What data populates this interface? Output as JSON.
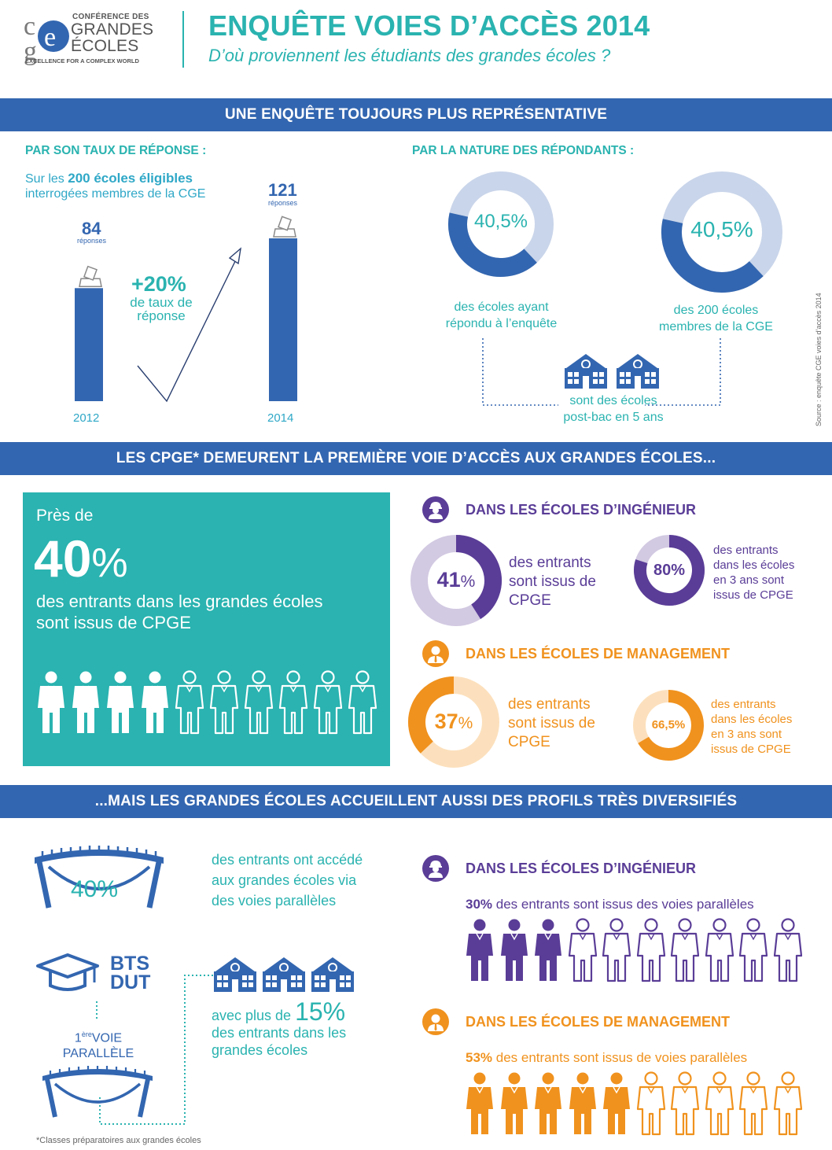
{
  "header": {
    "logo_line1": "CONFÉRENCE DES",
    "logo_line2": "GRANDES",
    "logo_line3": "ÉCOLES",
    "logo_tagline": "EXCELLENCE FOR A COMPLEX WORLD",
    "title": "ENQUÊTE VOIES D’ACCÈS 2014",
    "subtitle": "D’où proviennent les étudiants des grandes écoles ?"
  },
  "section1": {
    "banner": "UNE ENQUÊTE TOUJOURS PLUS REPRÉSENTATIVE",
    "left_heading": "PAR SON TAUX DE RÉPONSE :",
    "left_intro_pre": "Sur les ",
    "left_intro_bold": "200 écoles éligibles",
    "left_intro_line2": "interrogées membres de la CGE",
    "bars": [
      {
        "year": "2012",
        "value": 84,
        "value_label": "84",
        "unit": "réponses"
      },
      {
        "year": "2014",
        "value": 121,
        "value_label": "121",
        "unit": "réponses"
      }
    ],
    "growth_value": "+20%",
    "growth_text_line1": "de taux de",
    "growth_text_line2": "réponse",
    "right_heading": "PAR LA NATURE DES RÉPONDANTS :",
    "donuts": [
      {
        "value": 40.5,
        "label": "40,5%",
        "text_line1": "des écoles ayant",
        "text_line2": "répondu à l’enquête"
      },
      {
        "value": 40.5,
        "label": "40,5%",
        "text_line1": "des 200 écoles",
        "text_line2": "membres de la CGE"
      }
    ],
    "bracket_line1": "sont des écoles",
    "bracket_line2": "post-bac en 5 ans",
    "source": "Source : enquête CGE voies d’accès 2014"
  },
  "section2": {
    "banner": "LES CPGE* DEMEURENT LA PREMIÈRE VOIE D’ACCÈS AUX GRANDES ÉCOLES...",
    "teal_box": {
      "pre": "Près de",
      "big_number": "40",
      "big_pct": "%",
      "line1": "des entrants dans les grandes écoles",
      "line2": "sont issus de CPGE",
      "filled_people": 4,
      "total_people": 10
    },
    "engineering": {
      "heading": "DANS LES ÉCOLES D’INGÉNIEUR",
      "main_value": 41,
      "main_label_num": "41",
      "main_label_pct": "%",
      "main_text_line1": "des entrants",
      "main_text_line2": "sont issus de",
      "main_text_line3": "CPGE",
      "secondary_value": 80,
      "secondary_label": "80%",
      "secondary_text_line1": "des entrants",
      "secondary_text_line2": "dans les écoles",
      "secondary_text_line3": "en 3 ans sont",
      "secondary_text_line4": "issus de CPGE"
    },
    "management": {
      "heading": "DANS LES ÉCOLES DE MANAGEMENT",
      "main_value": 37,
      "main_label_num": "37",
      "main_label_pct": "%",
      "main_text_line1": "des entrants",
      "main_text_line2": "sont issus de",
      "main_text_line3": "CPGE",
      "secondary_value": 66.5,
      "secondary_label": "66,5%",
      "secondary_text_line1": "des entrants",
      "secondary_text_line2": "dans les écoles",
      "secondary_text_line3": "en 3 ans sont",
      "secondary_text_line4": "issus de CPGE"
    }
  },
  "section3": {
    "banner": "...MAIS LES GRANDES ÉCOLES ACCUEILLENT AUSSI DES PROFILS TRÈS DIVERSIFIÉS",
    "bridge_value": "40%",
    "bridge_text_line1": "des entrants ont accédé",
    "bridge_text_line2": "aux grandes écoles via",
    "bridge_text_line3": "des voies parallèles",
    "bts": "BTS",
    "dut": "DUT",
    "first_path_num": "1",
    "first_path_sup": "ère",
    "first_path_word": "VOIE",
    "first_path_line2": "PARALLÈLE",
    "bts_text_pre": "avec plus de ",
    "bts_value": "15%",
    "bts_text_line2": "des entrants dans les",
    "bts_text_line3": "grandes écoles",
    "engineering": {
      "heading": "DANS LES ÉCOLES D’INGÉNIEUR",
      "bold": "30%",
      "text": " des entrants sont issus des voies parallèles",
      "filled_people": 3,
      "total_people": 10
    },
    "management": {
      "heading": "DANS LES ÉCOLES DE MANAGEMENT",
      "bold": "53%",
      "text": " des entrants sont issus de voies parallèles",
      "filled_people": 5,
      "total_people": 10
    },
    "footnote": "*Classes préparatoires aux grandes écoles"
  },
  "colors": {
    "navy": "#3366b0",
    "teal": "#2ab3b0",
    "light_blue": "#c9d5ea",
    "purple": "#5a3d97",
    "light_purple": "#d2c9e2",
    "orange": "#f0921e",
    "light_orange": "#fce0bd"
  }
}
